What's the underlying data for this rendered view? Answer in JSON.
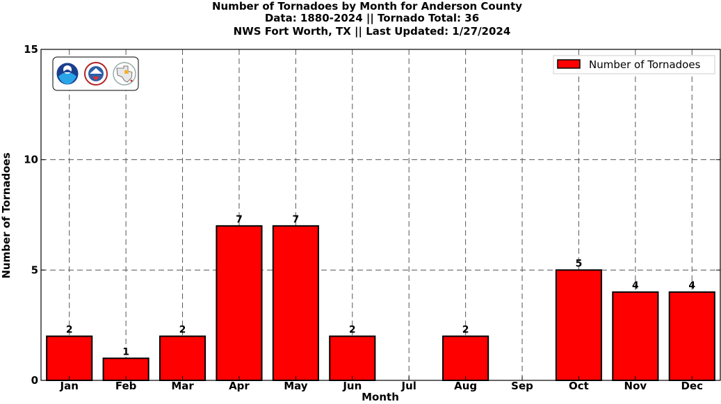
{
  "chart_data": {
    "type": "bar",
    "title": "Number of Tornadoes by Month for Anderson County",
    "subtitle_lines": [
      "Data: 1880-2024 || Tornado Total: 36",
      "NWS Fort Worth, TX || Last Updated: 1/27/2024"
    ],
    "xlabel": "Month",
    "ylabel": "Number of Tornadoes",
    "categories": [
      "Jan",
      "Feb",
      "Mar",
      "Apr",
      "May",
      "Jun",
      "Jul",
      "Aug",
      "Sep",
      "Oct",
      "Nov",
      "Dec"
    ],
    "series": [
      {
        "name": "Number of Tornadoes",
        "values": [
          2,
          1,
          2,
          7,
          7,
          2,
          0,
          2,
          0,
          5,
          4,
          4
        ],
        "color": "#ff0000",
        "edge_color": "#000000"
      }
    ],
    "data_labels": [
      "2",
      "1",
      "2",
      "7",
      "7",
      "2",
      "",
      "2",
      "",
      "5",
      "4",
      "4"
    ],
    "ylim": [
      0,
      15
    ],
    "yticks": [
      0,
      5,
      10,
      15
    ],
    "grid": true,
    "legend": "top-right"
  },
  "logos": [
    "noaa-logo-icon",
    "nws-logo-icon",
    "texas-map-logo-icon"
  ]
}
